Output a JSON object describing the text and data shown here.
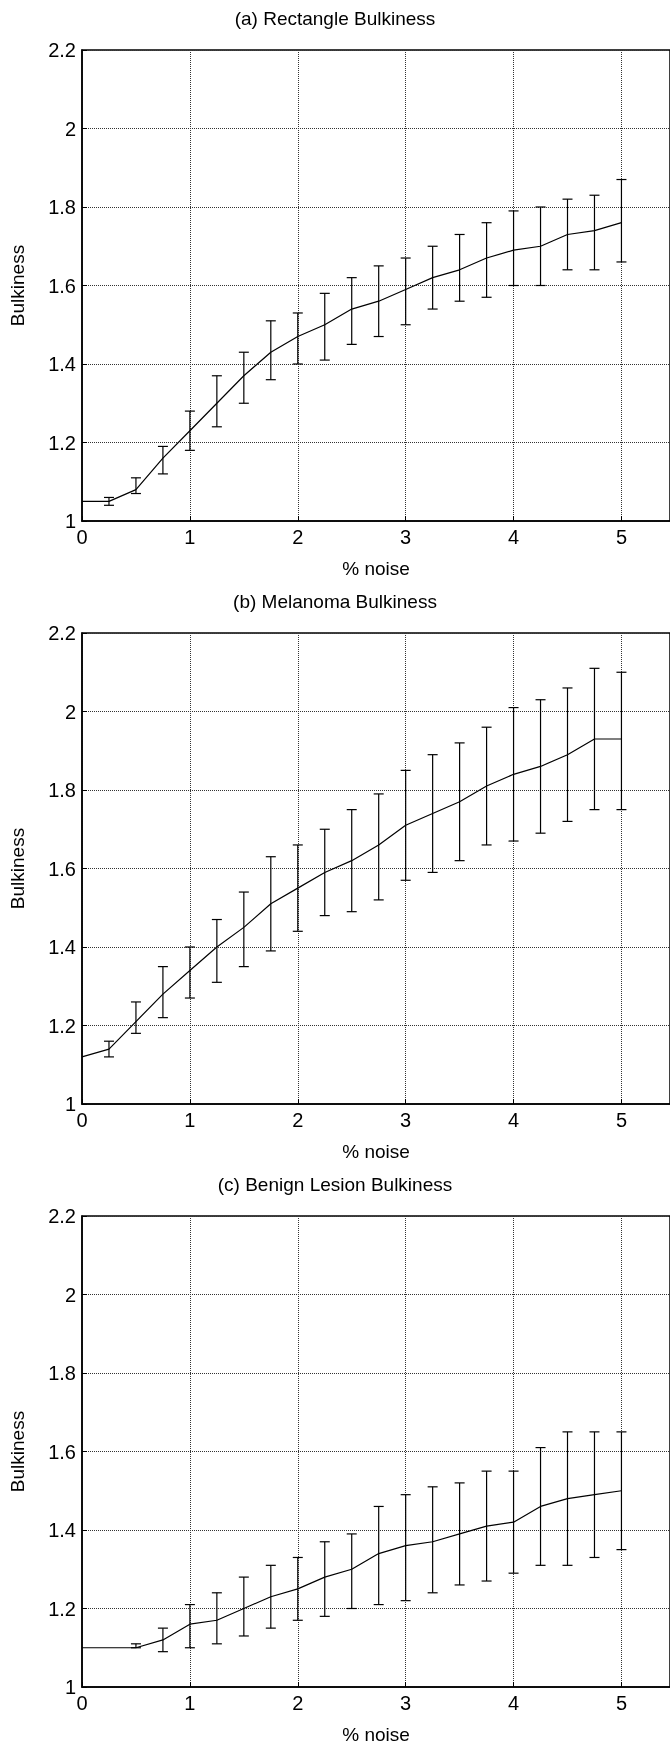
{
  "chart_data": [
    {
      "type": "line",
      "title": "(a) Rectangle Bulkiness",
      "xlabel": "% noise",
      "ylabel": "Bulkiness",
      "color": "#000000",
      "grid": true,
      "xlim": [
        0,
        5.45
      ],
      "xticks": [
        0,
        1,
        2,
        3,
        4,
        5
      ],
      "ylim": [
        1,
        2.2
      ],
      "yticks": [
        1,
        1.2,
        1.4,
        1.6,
        1.8,
        2,
        2.2
      ],
      "x": [
        0,
        0.25,
        0.5,
        0.75,
        1,
        1.25,
        1.5,
        1.75,
        2,
        2.25,
        2.5,
        2.75,
        3,
        3.25,
        3.5,
        3.75,
        4,
        4.25,
        4.5,
        4.75,
        5
      ],
      "values": [
        1.05,
        1.05,
        1.08,
        1.16,
        1.23,
        1.3,
        1.37,
        1.43,
        1.47,
        1.5,
        1.54,
        1.56,
        1.59,
        1.62,
        1.64,
        1.67,
        1.69,
        1.7,
        1.73,
        1.74,
        1.76
      ],
      "errors": [
        null,
        [
          1.04,
          1.06
        ],
        [
          1.07,
          1.11
        ],
        [
          1.12,
          1.19
        ],
        [
          1.18,
          1.28
        ],
        [
          1.24,
          1.37
        ],
        [
          1.3,
          1.43
        ],
        [
          1.36,
          1.51
        ],
        [
          1.4,
          1.53
        ],
        [
          1.41,
          1.58
        ],
        [
          1.45,
          1.62
        ],
        [
          1.47,
          1.65
        ],
        [
          1.5,
          1.67
        ],
        [
          1.54,
          1.7
        ],
        [
          1.56,
          1.73
        ],
        [
          1.57,
          1.76
        ],
        [
          1.6,
          1.79
        ],
        [
          1.6,
          1.8
        ],
        [
          1.64,
          1.82
        ],
        [
          1.64,
          1.83
        ],
        [
          1.66,
          1.87
        ]
      ]
    },
    {
      "type": "line",
      "title": "(b) Melanoma Bulkiness",
      "xlabel": "% noise",
      "ylabel": "Bulkiness",
      "color": "#000000",
      "grid": true,
      "xlim": [
        0,
        5.45
      ],
      "xticks": [
        0,
        1,
        2,
        3,
        4,
        5
      ],
      "ylim": [
        1,
        2.2
      ],
      "yticks": [
        1,
        1.2,
        1.4,
        1.6,
        1.8,
        2,
        2.2
      ],
      "x": [
        0,
        0.25,
        0.5,
        0.75,
        1,
        1.25,
        1.5,
        1.75,
        2,
        2.25,
        2.5,
        2.75,
        3,
        3.25,
        3.5,
        3.75,
        4,
        4.25,
        4.5,
        4.75,
        5
      ],
      "values": [
        1.12,
        1.14,
        1.21,
        1.28,
        1.34,
        1.4,
        1.45,
        1.51,
        1.55,
        1.59,
        1.62,
        1.66,
        1.71,
        1.74,
        1.77,
        1.81,
        1.84,
        1.86,
        1.89,
        1.93,
        1.93
      ],
      "errors": [
        null,
        [
          1.12,
          1.16
        ],
        [
          1.18,
          1.26
        ],
        [
          1.22,
          1.35
        ],
        [
          1.27,
          1.4
        ],
        [
          1.31,
          1.47
        ],
        [
          1.35,
          1.54
        ],
        [
          1.39,
          1.63
        ],
        [
          1.44,
          1.66
        ],
        [
          1.48,
          1.7
        ],
        [
          1.49,
          1.75
        ],
        [
          1.52,
          1.79
        ],
        [
          1.57,
          1.85
        ],
        [
          1.59,
          1.89
        ],
        [
          1.62,
          1.92
        ],
        [
          1.66,
          1.96
        ],
        [
          1.67,
          2.01
        ],
        [
          1.69,
          2.03
        ],
        [
          1.72,
          2.06
        ],
        [
          1.75,
          2.11
        ],
        [
          1.75,
          2.1
        ]
      ]
    },
    {
      "type": "line",
      "title": "(c) Benign Lesion Bulkiness",
      "xlabel": "% noise",
      "ylabel": "Bulkiness",
      "color": "#000000",
      "grid": true,
      "xlim": [
        0,
        5.45
      ],
      "xticks": [
        0,
        1,
        2,
        3,
        4,
        5
      ],
      "ylim": [
        1,
        2.2
      ],
      "yticks": [
        1,
        1.2,
        1.4,
        1.6,
        1.8,
        2,
        2.2
      ],
      "x": [
        0,
        0.25,
        0.5,
        0.75,
        1,
        1.25,
        1.5,
        1.75,
        2,
        2.25,
        2.5,
        2.75,
        3,
        3.25,
        3.5,
        3.75,
        4,
        4.25,
        4.5,
        4.75,
        5
      ],
      "values": [
        1.1,
        1.1,
        1.1,
        1.12,
        1.16,
        1.17,
        1.2,
        1.23,
        1.25,
        1.28,
        1.3,
        1.34,
        1.36,
        1.37,
        1.39,
        1.41,
        1.42,
        1.46,
        1.48,
        1.49,
        1.5
      ],
      "errors": [
        null,
        null,
        [
          1.1,
          1.11
        ],
        [
          1.09,
          1.15
        ],
        [
          1.1,
          1.21
        ],
        [
          1.11,
          1.24
        ],
        [
          1.13,
          1.28
        ],
        [
          1.15,
          1.31
        ],
        [
          1.17,
          1.33
        ],
        [
          1.18,
          1.37
        ],
        [
          1.2,
          1.39
        ],
        [
          1.21,
          1.46
        ],
        [
          1.22,
          1.49
        ],
        [
          1.24,
          1.51
        ],
        [
          1.26,
          1.52
        ],
        [
          1.27,
          1.55
        ],
        [
          1.29,
          1.55
        ],
        [
          1.31,
          1.61
        ],
        [
          1.31,
          1.65
        ],
        [
          1.33,
          1.65
        ],
        [
          1.35,
          1.65
        ]
      ]
    }
  ]
}
